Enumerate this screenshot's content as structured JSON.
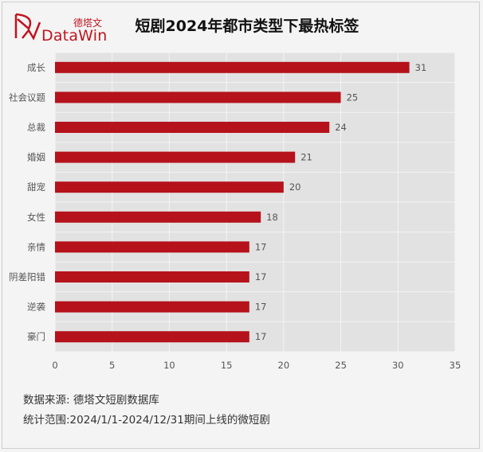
{
  "logo": {
    "cn": "德塔文",
    "en": "DataWin",
    "brand_color": "#c0141e"
  },
  "title": "短剧2024年都市类型下最热标签",
  "chart_data": {
    "type": "bar",
    "orientation": "horizontal",
    "categories": [
      "成长",
      "社会议题",
      "总裁",
      "婚姻",
      "甜宠",
      "女性",
      "亲情",
      "阴差阳错",
      "逆袭",
      "豪门"
    ],
    "values": [
      31,
      25,
      24,
      21,
      20,
      18,
      17,
      17,
      17,
      17
    ],
    "xlim": [
      0,
      35
    ],
    "xticks": [
      0,
      5,
      10,
      15,
      20,
      25,
      30,
      35
    ],
    "grid": true,
    "bar_color": "#b5121b",
    "plot_background": "#e2e2e2"
  },
  "notes": {
    "source": "数据来源: 德塔文短剧数据库",
    "range": "统计范围:2024/1/1-2024/12/31期间上线的微短剧"
  }
}
